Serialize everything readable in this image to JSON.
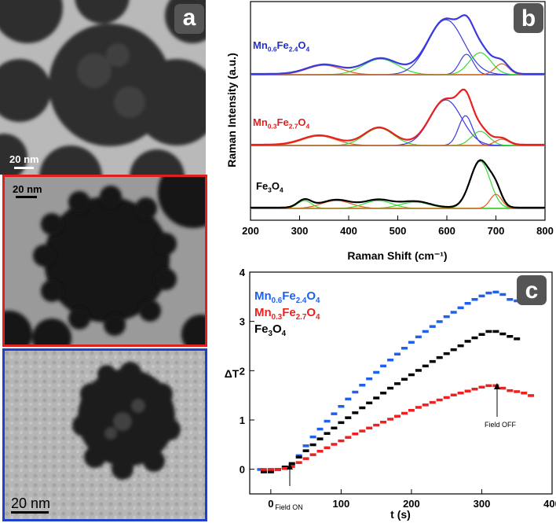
{
  "panel_a": {
    "letter": "a",
    "scale_labels": [
      "20 nm",
      "20 nm",
      "20  nm"
    ]
  },
  "panel_b": {
    "letter": "b",
    "ylabel": "Raman Intensity (a.u.)",
    "xlabel": "Raman Shift (cm⁻¹)",
    "xticks": [
      "200",
      "300",
      "400",
      "500",
      "600",
      "700",
      "800"
    ],
    "xlim": [
      200,
      800
    ],
    "spectra_labels": [
      {
        "base": "Mn",
        "sub1": "0.6",
        "mid": "Fe",
        "sub2": "2.4",
        "end": "O",
        "sub3": "4",
        "color": "#2230c8"
      },
      {
        "base": "Mn",
        "sub1": "0.3",
        "mid": "Fe",
        "sub2": "2.7",
        "end": "O",
        "sub3": "4",
        "color": "#e0201e"
      },
      {
        "base": "Fe",
        "sub1": "3",
        "mid": "O",
        "sub2": "4",
        "end": "",
        "sub3": "",
        "color": "#000000"
      }
    ],
    "colors": {
      "blue": "#3a3ae0",
      "red": "#e82020",
      "black": "#000000",
      "green": "#33dd33",
      "orange": "#e06020",
      "baseline": "#d05020"
    }
  },
  "chart_data": {
    "type": "scatter",
    "letter": "c",
    "xlabel": "t (s)",
    "ylabel": "ΔT",
    "xlim": [
      -30,
      400
    ],
    "ylim": [
      -0.5,
      4
    ],
    "xticks": [
      0,
      100,
      200,
      300,
      400
    ],
    "yticks": [
      0,
      1,
      2,
      3,
      4
    ],
    "annotations": [
      "Field ON",
      "Field OFF"
    ],
    "legend": [
      {
        "label_parts": [
          "Mn",
          "0.6",
          "Fe",
          "2.4",
          "O",
          "4"
        ],
        "color": "#2060ee"
      },
      {
        "label_parts": [
          "Mn",
          "0.3",
          "Fe",
          "2.7",
          "O",
          "4"
        ],
        "color": "#ee2020"
      },
      {
        "label_parts": [
          "Fe",
          "3",
          "O",
          "4"
        ],
        "color": "#000000"
      }
    ],
    "series": [
      {
        "name": "Mn0.6Fe2.4O4",
        "color": "#2060ee",
        "points": [
          [
            -15,
            0
          ],
          [
            0,
            0
          ],
          [
            10,
            0
          ],
          [
            20,
            0.02
          ],
          [
            30,
            0.1
          ],
          [
            40,
            0.28
          ],
          [
            50,
            0.48
          ],
          [
            60,
            0.66
          ],
          [
            70,
            0.82
          ],
          [
            80,
            0.98
          ],
          [
            90,
            1.13
          ],
          [
            100,
            1.28
          ],
          [
            110,
            1.43
          ],
          [
            120,
            1.57
          ],
          [
            130,
            1.71
          ],
          [
            140,
            1.84
          ],
          [
            150,
            1.97
          ],
          [
            160,
            2.1
          ],
          [
            170,
            2.22
          ],
          [
            180,
            2.34
          ],
          [
            190,
            2.46
          ],
          [
            200,
            2.58
          ],
          [
            210,
            2.69
          ],
          [
            220,
            2.8
          ],
          [
            230,
            2.9
          ],
          [
            240,
            3.0
          ],
          [
            250,
            3.1
          ],
          [
            260,
            3.19
          ],
          [
            270,
            3.28
          ],
          [
            280,
            3.37
          ],
          [
            290,
            3.45
          ],
          [
            300,
            3.52
          ],
          [
            310,
            3.58
          ],
          [
            320,
            3.6
          ],
          [
            330,
            3.55
          ],
          [
            340,
            3.45
          ],
          [
            350,
            3.42
          ],
          [
            360,
            3.45
          ],
          [
            370,
            3.38
          ],
          [
            380,
            3.4
          ]
        ]
      },
      {
        "name": "Fe3O4",
        "color": "#000000",
        "points": [
          [
            -10,
            -0.05
          ],
          [
            0,
            -0.05
          ],
          [
            10,
            0
          ],
          [
            20,
            0.05
          ],
          [
            30,
            0.12
          ],
          [
            40,
            0.25
          ],
          [
            50,
            0.38
          ],
          [
            60,
            0.5
          ],
          [
            70,
            0.62
          ],
          [
            80,
            0.73
          ],
          [
            90,
            0.84
          ],
          [
            100,
            0.95
          ],
          [
            110,
            1.05
          ],
          [
            120,
            1.15
          ],
          [
            130,
            1.25
          ],
          [
            140,
            1.35
          ],
          [
            150,
            1.45
          ],
          [
            160,
            1.55
          ],
          [
            170,
            1.65
          ],
          [
            180,
            1.74
          ],
          [
            190,
            1.83
          ],
          [
            200,
            1.92
          ],
          [
            210,
            2.01
          ],
          [
            220,
            2.1
          ],
          [
            230,
            2.19
          ],
          [
            240,
            2.27
          ],
          [
            250,
            2.35
          ],
          [
            260,
            2.43
          ],
          [
            270,
            2.51
          ],
          [
            280,
            2.6
          ],
          [
            290,
            2.67
          ],
          [
            300,
            2.74
          ],
          [
            310,
            2.8
          ],
          [
            320,
            2.8
          ],
          [
            330,
            2.75
          ],
          [
            340,
            2.7
          ],
          [
            350,
            2.65
          ]
        ]
      },
      {
        "name": "Mn0.3Fe2.7O4",
        "color": "#ee2020",
        "points": [
          [
            -10,
            0
          ],
          [
            0,
            0
          ],
          [
            10,
            0
          ],
          [
            20,
            0.02
          ],
          [
            30,
            0.06
          ],
          [
            40,
            0.14
          ],
          [
            50,
            0.22
          ],
          [
            60,
            0.3
          ],
          [
            70,
            0.37
          ],
          [
            80,
            0.44
          ],
          [
            90,
            0.51
          ],
          [
            100,
            0.58
          ],
          [
            110,
            0.65
          ],
          [
            120,
            0.72
          ],
          [
            130,
            0.78
          ],
          [
            140,
            0.84
          ],
          [
            150,
            0.9
          ],
          [
            160,
            0.96
          ],
          [
            170,
            1.02
          ],
          [
            180,
            1.08
          ],
          [
            190,
            1.14
          ],
          [
            200,
            1.2
          ],
          [
            210,
            1.26
          ],
          [
            220,
            1.31
          ],
          [
            230,
            1.36
          ],
          [
            240,
            1.41
          ],
          [
            250,
            1.46
          ],
          [
            260,
            1.51
          ],
          [
            270,
            1.55
          ],
          [
            280,
            1.59
          ],
          [
            290,
            1.63
          ],
          [
            300,
            1.67
          ],
          [
            310,
            1.7
          ],
          [
            320,
            1.7
          ],
          [
            330,
            1.65
          ],
          [
            340,
            1.6
          ],
          [
            350,
            1.58
          ],
          [
            360,
            1.55
          ],
          [
            370,
            1.5
          ]
        ]
      }
    ]
  }
}
